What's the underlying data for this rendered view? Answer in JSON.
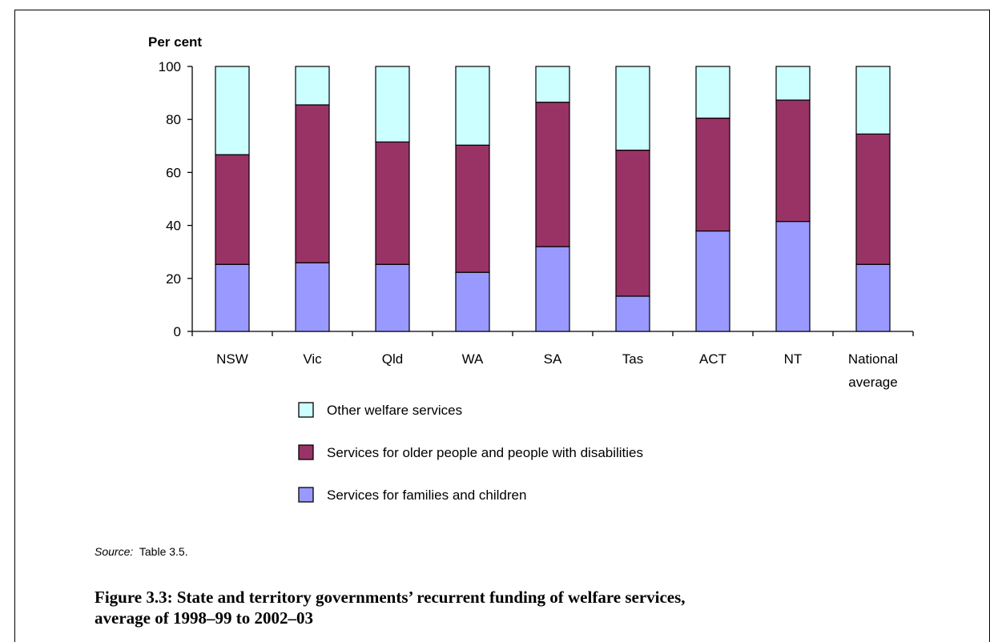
{
  "chart_data": {
    "type": "bar",
    "stacked": true,
    "ylabel": "Per cent",
    "ylim": [
      0,
      100
    ],
    "yticks": [
      0,
      20,
      40,
      60,
      80,
      100
    ],
    "categories": [
      "NSW",
      "Vic",
      "Qld",
      "WA",
      "SA",
      "Tas",
      "ACT",
      "NT",
      "National average"
    ],
    "category_lines": [
      [
        "NSW"
      ],
      [
        "Vic"
      ],
      [
        "Qld"
      ],
      [
        "WA"
      ],
      [
        "SA"
      ],
      [
        "Tas"
      ],
      [
        "ACT"
      ],
      [
        "NT"
      ],
      [
        "National",
        "average"
      ]
    ],
    "series": [
      {
        "name": "Services for families and children",
        "color": "#9999ff",
        "values": [
          25.3,
          25.9,
          25.3,
          22.3,
          32.0,
          13.3,
          37.9,
          41.5,
          25.3
        ]
      },
      {
        "name": "Services for older people and people with disabilities",
        "color": "#993366",
        "values": [
          41.4,
          59.6,
          46.2,
          48.0,
          54.5,
          55.1,
          42.6,
          45.8,
          49.2
        ]
      },
      {
        "name": "Other welfare services",
        "color": "#ccffff",
        "values": [
          33.3,
          14.5,
          28.5,
          29.7,
          13.5,
          31.6,
          19.5,
          12.7,
          25.5
        ]
      }
    ],
    "legend_order": [
      "Other welfare services",
      "Services for older people and people with disabilities",
      "Services for families and children"
    ],
    "legend_position": "bottom"
  },
  "source": {
    "label": "Source:",
    "text": "Table 3.5."
  },
  "caption": {
    "line1": "Figure 3.3: State and territory governments’ recurrent funding of welfare services,",
    "line2": "average of 1998–99 to 2002–03"
  }
}
